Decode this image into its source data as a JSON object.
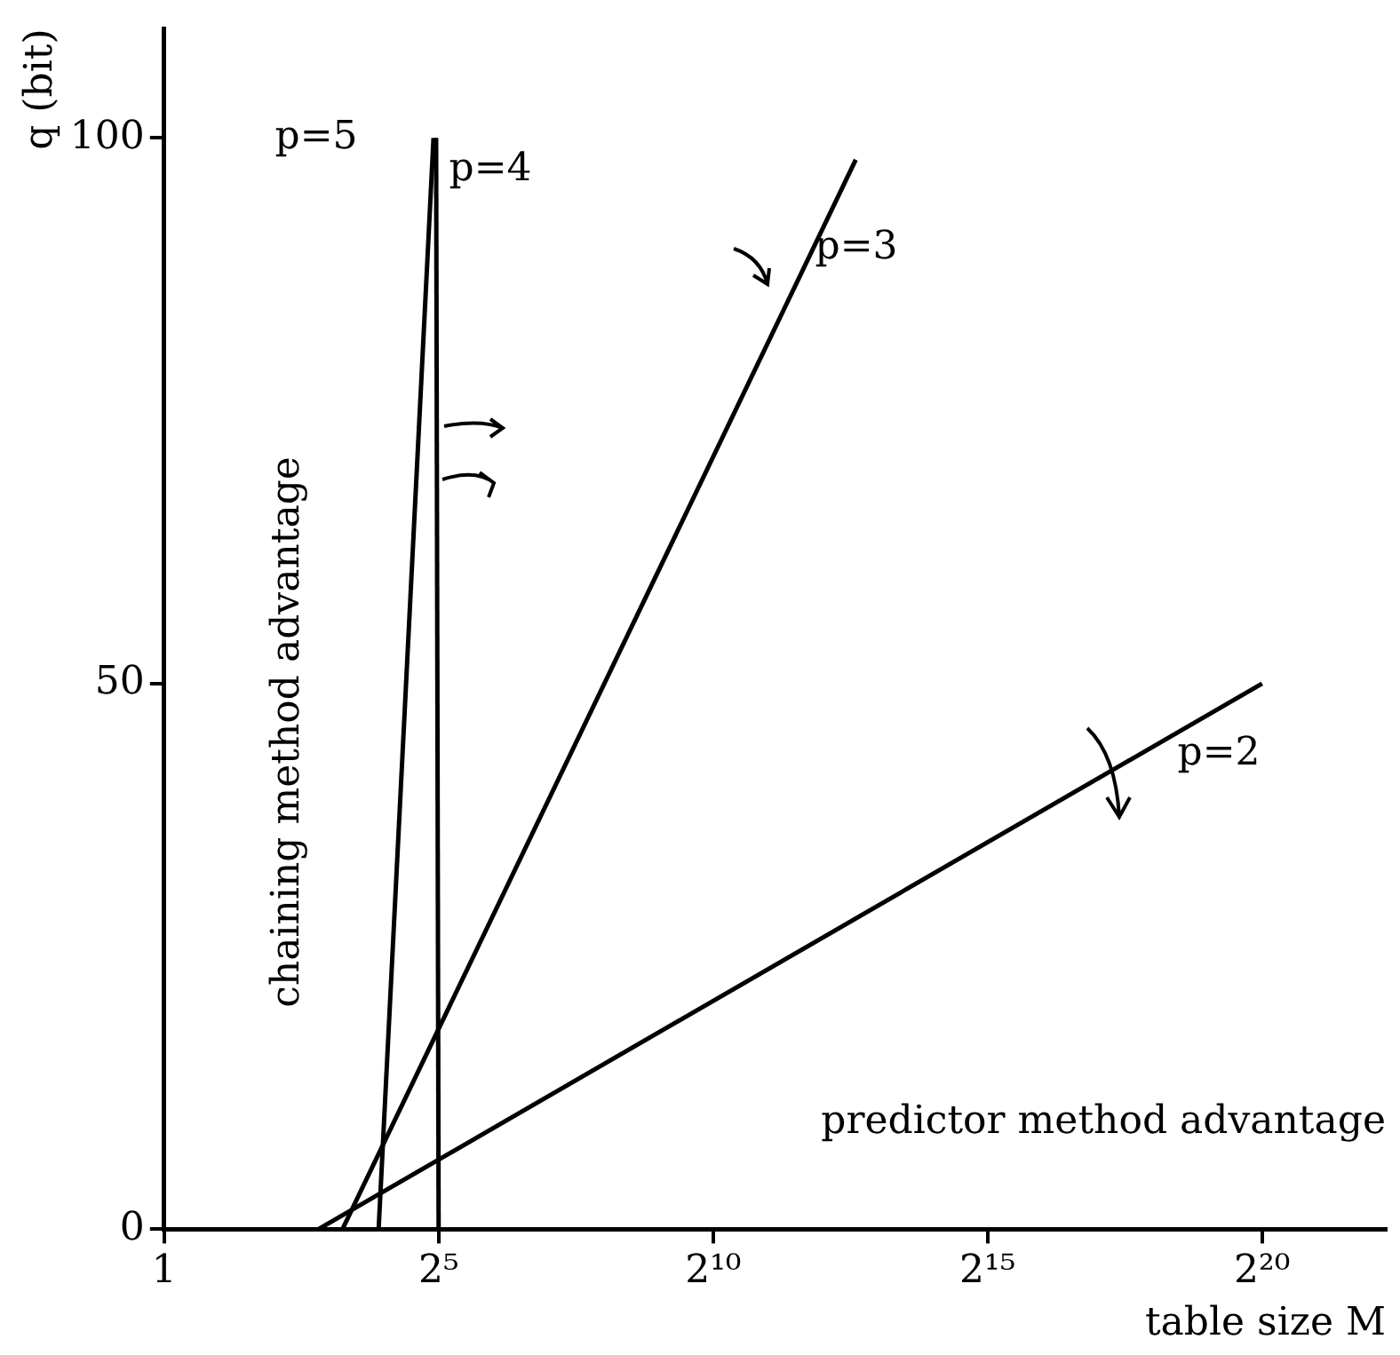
{
  "chart_data": {
    "type": "line",
    "xlabel": "table size M",
    "ylabel": "q (bit)",
    "log": "x",
    "xlim": [
      1,
      5000000
    ],
    "ylim": [
      0,
      110
    ],
    "xticks": [
      1,
      {
        "value": 32,
        "label": "2⁵"
      },
      {
        "value": 1024,
        "label": "2¹⁰"
      },
      {
        "value": 32768,
        "label": "2¹⁵"
      },
      {
        "value": 1048576,
        "label": "2²⁰"
      }
    ],
    "yticks": [
      0,
      50,
      100
    ],
    "series": [
      {
        "color": "#000000",
        "x": [
          7,
          1048576
        ],
        "values": [
          0,
          50
        ]
      },
      {
        "color": "#000000",
        "x": [
          9.5,
          6200
        ],
        "values": [
          0,
          98
        ]
      },
      {
        "color": "#000000",
        "x": [
          15,
          30
        ],
        "values": [
          0,
          100
        ]
      },
      {
        "color": "#000000",
        "x": [
          32,
          31
        ],
        "values": [
          0,
          100
        ]
      }
    ],
    "annotations": [
      "p=5",
      "p=4",
      "p=3",
      "p=2",
      "chaining method advantage",
      "predictor method advantage"
    ],
    "grid": false,
    "legend": false,
    "marker": "none",
    "line_style": "solid"
  }
}
